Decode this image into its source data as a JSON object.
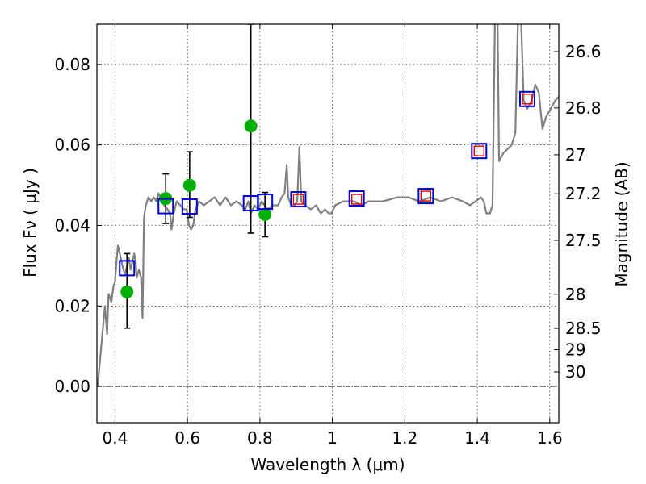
{
  "chart_data": {
    "type": "scatter",
    "xlabel": "Wavelength  λ (μm)",
    "ylabel": "Flux  Fν  ( μJy )",
    "ylabel_right": "Magnitude (AB)",
    "xlim": [
      0.35,
      1.625
    ],
    "ylim": [
      -0.009,
      0.09
    ],
    "xticks": [
      {
        "value": 0.4,
        "label": "0.4"
      },
      {
        "value": 0.6,
        "label": "0.6"
      },
      {
        "value": 0.8,
        "label": "0.8"
      },
      {
        "value": 1.0,
        "label": "1"
      },
      {
        "value": 1.2,
        "label": "1.2"
      },
      {
        "value": 1.4,
        "label": "1.4"
      },
      {
        "value": 1.6,
        "label": "1.6"
      }
    ],
    "yticks": [
      {
        "value": 0.0,
        "label": "0.00"
      },
      {
        "value": 0.02,
        "label": "0.02"
      },
      {
        "value": 0.04,
        "label": "0.04"
      },
      {
        "value": 0.06,
        "label": "0.06"
      },
      {
        "value": 0.08,
        "label": "0.08"
      }
    ],
    "mag_ticks": [
      {
        "value": 26.6,
        "label": "26.6"
      },
      {
        "value": 26.8,
        "label": "26.8"
      },
      {
        "value": 27.0,
        "label": "27"
      },
      {
        "value": 27.2,
        "label": "27.2"
      },
      {
        "value": 27.5,
        "label": "27.5"
      },
      {
        "value": 28.0,
        "label": "28"
      },
      {
        "value": 28.5,
        "label": "28.5"
      },
      {
        "value": 29.0,
        "label": "29"
      },
      {
        "value": 30.0,
        "label": "30"
      }
    ],
    "grid": true,
    "colors": {
      "model": "#808080",
      "observed": "#00b000",
      "model_band": "#0000e0",
      "predicted": "#e00000",
      "errorbar": "#000000",
      "zero_line": "#000000"
    },
    "series": [
      {
        "kind": "line",
        "points": [
          [
            0.352,
            0.0
          ],
          [
            0.362,
            0.01
          ],
          [
            0.372,
            0.02
          ],
          [
            0.378,
            0.013
          ],
          [
            0.382,
            0.023
          ],
          [
            0.39,
            0.021
          ],
          [
            0.396,
            0.025
          ],
          [
            0.4,
            0.026
          ],
          [
            0.404,
            0.031
          ],
          [
            0.408,
            0.035
          ],
          [
            0.413,
            0.033
          ],
          [
            0.418,
            0.031
          ],
          [
            0.423,
            0.029
          ],
          [
            0.428,
            0.028
          ],
          [
            0.433,
            0.03
          ],
          [
            0.438,
            0.032
          ],
          [
            0.443,
            0.029
          ],
          [
            0.448,
            0.031
          ],
          [
            0.453,
            0.033
          ],
          [
            0.457,
            0.031
          ],
          [
            0.46,
            0.027
          ],
          [
            0.466,
            0.029
          ],
          [
            0.472,
            0.027
          ],
          [
            0.476,
            0.017
          ],
          [
            0.48,
            0.042
          ],
          [
            0.485,
            0.045
          ],
          [
            0.492,
            0.047
          ],
          [
            0.5,
            0.046
          ],
          [
            0.507,
            0.047
          ],
          [
            0.514,
            0.046
          ],
          [
            0.52,
            0.048
          ],
          [
            0.528,
            0.046
          ],
          [
            0.536,
            0.045
          ],
          [
            0.545,
            0.044
          ],
          [
            0.552,
            0.043
          ],
          [
            0.556,
            0.039
          ],
          [
            0.562,
            0.043
          ],
          [
            0.57,
            0.046
          ],
          [
            0.58,
            0.045
          ],
          [
            0.59,
            0.044
          ],
          [
            0.598,
            0.044
          ],
          [
            0.604,
            0.04
          ],
          [
            0.61,
            0.039
          ],
          [
            0.616,
            0.04
          ],
          [
            0.622,
            0.044
          ],
          [
            0.632,
            0.046
          ],
          [
            0.645,
            0.045
          ],
          [
            0.66,
            0.046
          ],
          [
            0.675,
            0.047
          ],
          [
            0.69,
            0.045
          ],
          [
            0.705,
            0.047
          ],
          [
            0.72,
            0.045
          ],
          [
            0.735,
            0.046
          ],
          [
            0.75,
            0.045
          ],
          [
            0.76,
            0.044
          ],
          [
            0.768,
            0.046
          ],
          [
            0.775,
            0.043
          ],
          [
            0.785,
            0.045
          ],
          [
            0.795,
            0.044
          ],
          [
            0.805,
            0.046
          ],
          [
            0.82,
            0.044
          ],
          [
            0.835,
            0.045
          ],
          [
            0.85,
            0.045
          ],
          [
            0.86,
            0.047
          ],
          [
            0.868,
            0.048
          ],
          [
            0.874,
            0.055
          ],
          [
            0.878,
            0.047
          ],
          [
            0.886,
            0.045
          ],
          [
            0.896,
            0.045
          ],
          [
            0.903,
            0.046
          ],
          [
            0.909,
            0.0595
          ],
          [
            0.914,
            0.046
          ],
          [
            0.925,
            0.045
          ],
          [
            0.94,
            0.044
          ],
          [
            0.955,
            0.045
          ],
          [
            0.968,
            0.043
          ],
          [
            0.98,
            0.044
          ],
          [
            0.99,
            0.043
          ],
          [
            0.997,
            0.043
          ],
          [
            1.008,
            0.045
          ],
          [
            1.03,
            0.046
          ],
          [
            1.06,
            0.046
          ],
          [
            1.08,
            0.045
          ],
          [
            1.1,
            0.046
          ],
          [
            1.14,
            0.046
          ],
          [
            1.18,
            0.047
          ],
          [
            1.21,
            0.047
          ],
          [
            1.24,
            0.046
          ],
          [
            1.27,
            0.047
          ],
          [
            1.3,
            0.046
          ],
          [
            1.33,
            0.047
          ],
          [
            1.36,
            0.046
          ],
          [
            1.38,
            0.045
          ],
          [
            1.41,
            0.047
          ],
          [
            1.418,
            0.046
          ],
          [
            1.425,
            0.043
          ],
          [
            1.435,
            0.043
          ],
          [
            1.442,
            0.045
          ],
          [
            1.45,
            0.0995
          ],
          [
            1.455,
            0.1
          ],
          [
            1.46,
            0.056
          ],
          [
            1.472,
            0.058
          ],
          [
            1.484,
            0.059
          ],
          [
            1.495,
            0.06
          ],
          [
            1.505,
            0.063
          ],
          [
            1.512,
            0.09
          ],
          [
            1.516,
            0.1
          ],
          [
            1.52,
            0.094
          ],
          [
            1.528,
            0.071
          ],
          [
            1.538,
            0.069
          ],
          [
            1.55,
            0.071
          ],
          [
            1.56,
            0.075
          ],
          [
            1.57,
            0.073
          ],
          [
            1.58,
            0.064
          ],
          [
            1.59,
            0.067
          ],
          [
            1.603,
            0.069
          ],
          [
            1.615,
            0.071
          ],
          [
            1.625,
            0.072
          ]
        ]
      },
      {
        "kind": "observed_points",
        "points": [
          {
            "x": 0.433,
            "y": 0.0235,
            "yerr_low": 0.0145,
            "yerr_high": 0.033
          },
          {
            "x": 0.54,
            "y": 0.0467,
            "yerr_low": 0.0405,
            "yerr_high": 0.0528
          },
          {
            "x": 0.606,
            "y": 0.05,
            "yerr_low": 0.042,
            "yerr_high": 0.0583
          },
          {
            "x": 0.775,
            "y": 0.0647,
            "yerr_low": 0.0381,
            "yerr_high": 0.09
          },
          {
            "x": 0.814,
            "y": 0.0427,
            "yerr_low": 0.0372,
            "yerr_high": 0.0482
          }
        ]
      },
      {
        "kind": "model_band_points",
        "points": [
          {
            "x": 0.433,
            "y": 0.0294
          },
          {
            "x": 0.54,
            "y": 0.0448
          },
          {
            "x": 0.606,
            "y": 0.0447
          },
          {
            "x": 0.775,
            "y": 0.0455
          },
          {
            "x": 0.814,
            "y": 0.0459
          },
          {
            "x": 0.906,
            "y": 0.0465
          },
          {
            "x": 1.067,
            "y": 0.0467
          },
          {
            "x": 1.258,
            "y": 0.0473
          },
          {
            "x": 1.405,
            "y": 0.0585
          },
          {
            "x": 1.538,
            "y": 0.0714
          }
        ]
      },
      {
        "kind": "predicted_points",
        "points": [
          {
            "x": 0.906,
            "y": 0.0465
          },
          {
            "x": 1.067,
            "y": 0.0465
          },
          {
            "x": 1.258,
            "y": 0.0473
          },
          {
            "x": 1.405,
            "y": 0.0585
          },
          {
            "x": 1.538,
            "y": 0.0714
          }
        ]
      }
    ]
  }
}
